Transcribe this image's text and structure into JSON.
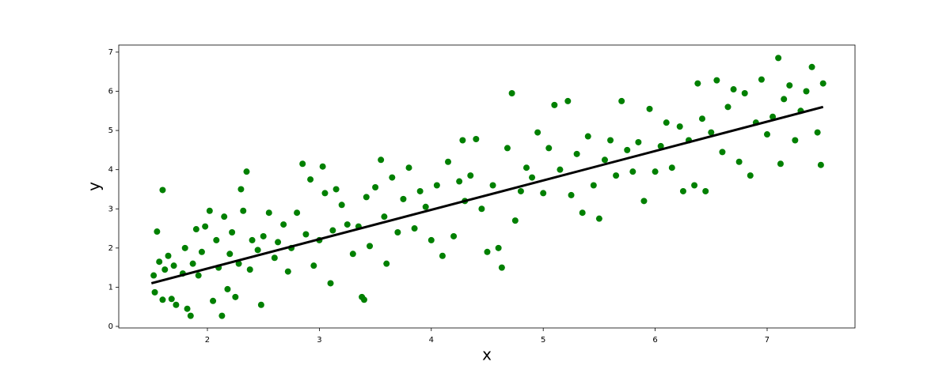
{
  "chart_data": {
    "type": "scatter",
    "x_label": "x",
    "y_label": "y",
    "xlim": [
      1.208,
      7.785
    ],
    "ylim": [
      -0.04,
      7.18
    ],
    "xticks": [
      2,
      3,
      4,
      5,
      6,
      7
    ],
    "yticks": [
      0,
      1,
      2,
      3,
      4,
      5,
      6,
      7
    ],
    "series": [
      {
        "type": "scatter",
        "color": "#008000",
        "x": [
          1.52,
          1.53,
          1.55,
          1.57,
          1.6,
          1.6,
          1.62,
          1.65,
          1.68,
          1.7,
          1.72,
          1.78,
          1.8,
          1.82,
          1.85,
          1.87,
          1.9,
          1.92,
          1.95,
          1.98,
          2.02,
          2.05,
          2.08,
          2.1,
          2.13,
          2.15,
          2.18,
          2.2,
          2.22,
          2.25,
          2.28,
          2.3,
          2.32,
          2.35,
          2.38,
          2.4,
          2.45,
          2.48,
          2.5,
          2.55,
          2.6,
          2.63,
          2.68,
          2.72,
          2.75,
          2.8,
          2.85,
          2.88,
          2.92,
          2.95,
          3.0,
          3.03,
          3.05,
          3.1,
          3.12,
          3.15,
          3.2,
          3.25,
          3.3,
          3.35,
          3.38,
          3.4,
          3.42,
          3.45,
          3.5,
          3.55,
          3.58,
          3.6,
          3.65,
          3.7,
          3.75,
          3.8,
          3.85,
          3.9,
          3.95,
          4.0,
          4.05,
          4.1,
          4.15,
          4.2,
          4.25,
          4.28,
          4.3,
          4.35,
          4.4,
          4.45,
          4.5,
          4.55,
          4.6,
          4.63,
          4.68,
          4.72,
          4.75,
          4.8,
          4.85,
          4.9,
          4.95,
          5.0,
          5.05,
          5.1,
          5.15,
          5.22,
          5.25,
          5.3,
          5.35,
          5.4,
          5.45,
          5.5,
          5.55,
          5.6,
          5.65,
          5.7,
          5.75,
          5.8,
          5.85,
          5.9,
          5.95,
          6.0,
          6.05,
          6.1,
          6.15,
          6.22,
          6.25,
          6.3,
          6.35,
          6.38,
          6.42,
          6.45,
          6.5,
          6.55,
          6.6,
          6.65,
          6.7,
          6.75,
          6.8,
          6.85,
          6.9,
          6.95,
          7.0,
          7.05,
          7.1,
          7.12,
          7.15,
          7.2,
          7.25,
          7.3,
          7.35,
          7.4,
          7.45,
          7.48,
          7.5
        ],
        "values": [
          1.3,
          0.87,
          2.42,
          1.65,
          0.68,
          3.48,
          1.45,
          1.8,
          0.7,
          1.55,
          0.55,
          1.35,
          2.0,
          0.45,
          0.27,
          1.6,
          2.48,
          1.3,
          1.9,
          2.55,
          2.95,
          0.65,
          2.2,
          1.5,
          0.27,
          2.8,
          0.95,
          1.85,
          2.4,
          0.75,
          1.6,
          3.5,
          2.95,
          3.95,
          1.45,
          2.2,
          1.95,
          0.55,
          2.3,
          2.9,
          1.75,
          2.15,
          2.6,
          1.4,
          2.0,
          2.9,
          4.15,
          2.35,
          3.75,
          1.55,
          2.2,
          4.08,
          3.4,
          1.1,
          2.45,
          3.5,
          3.1,
          2.6,
          1.85,
          2.55,
          0.75,
          0.68,
          3.3,
          2.05,
          3.55,
          4.25,
          2.8,
          1.6,
          3.8,
          2.4,
          3.25,
          4.05,
          2.5,
          3.45,
          3.05,
          2.2,
          3.6,
          1.8,
          4.2,
          2.3,
          3.7,
          4.75,
          3.2,
          3.85,
          4.78,
          3.0,
          1.9,
          3.6,
          2.0,
          1.5,
          4.55,
          5.95,
          2.7,
          3.45,
          4.05,
          3.8,
          4.95,
          3.4,
          4.55,
          5.65,
          4.0,
          5.75,
          3.35,
          4.4,
          2.9,
          4.85,
          3.6,
          2.75,
          4.25,
          4.75,
          3.85,
          5.75,
          4.5,
          3.95,
          4.7,
          3.2,
          5.55,
          3.95,
          4.6,
          5.2,
          4.05,
          5.1,
          3.45,
          4.75,
          3.6,
          6.2,
          5.3,
          3.45,
          4.95,
          6.28,
          4.45,
          5.6,
          6.05,
          4.2,
          5.95,
          3.85,
          5.2,
          6.3,
          4.9,
          5.35,
          6.85,
          4.15,
          5.8,
          6.15,
          4.75,
          5.5,
          6.0,
          6.62,
          4.95,
          4.12,
          6.2
        ]
      },
      {
        "type": "line",
        "color": "#000000",
        "x": [
          1.5,
          7.5
        ],
        "values": [
          1.1,
          5.6
        ]
      }
    ]
  }
}
